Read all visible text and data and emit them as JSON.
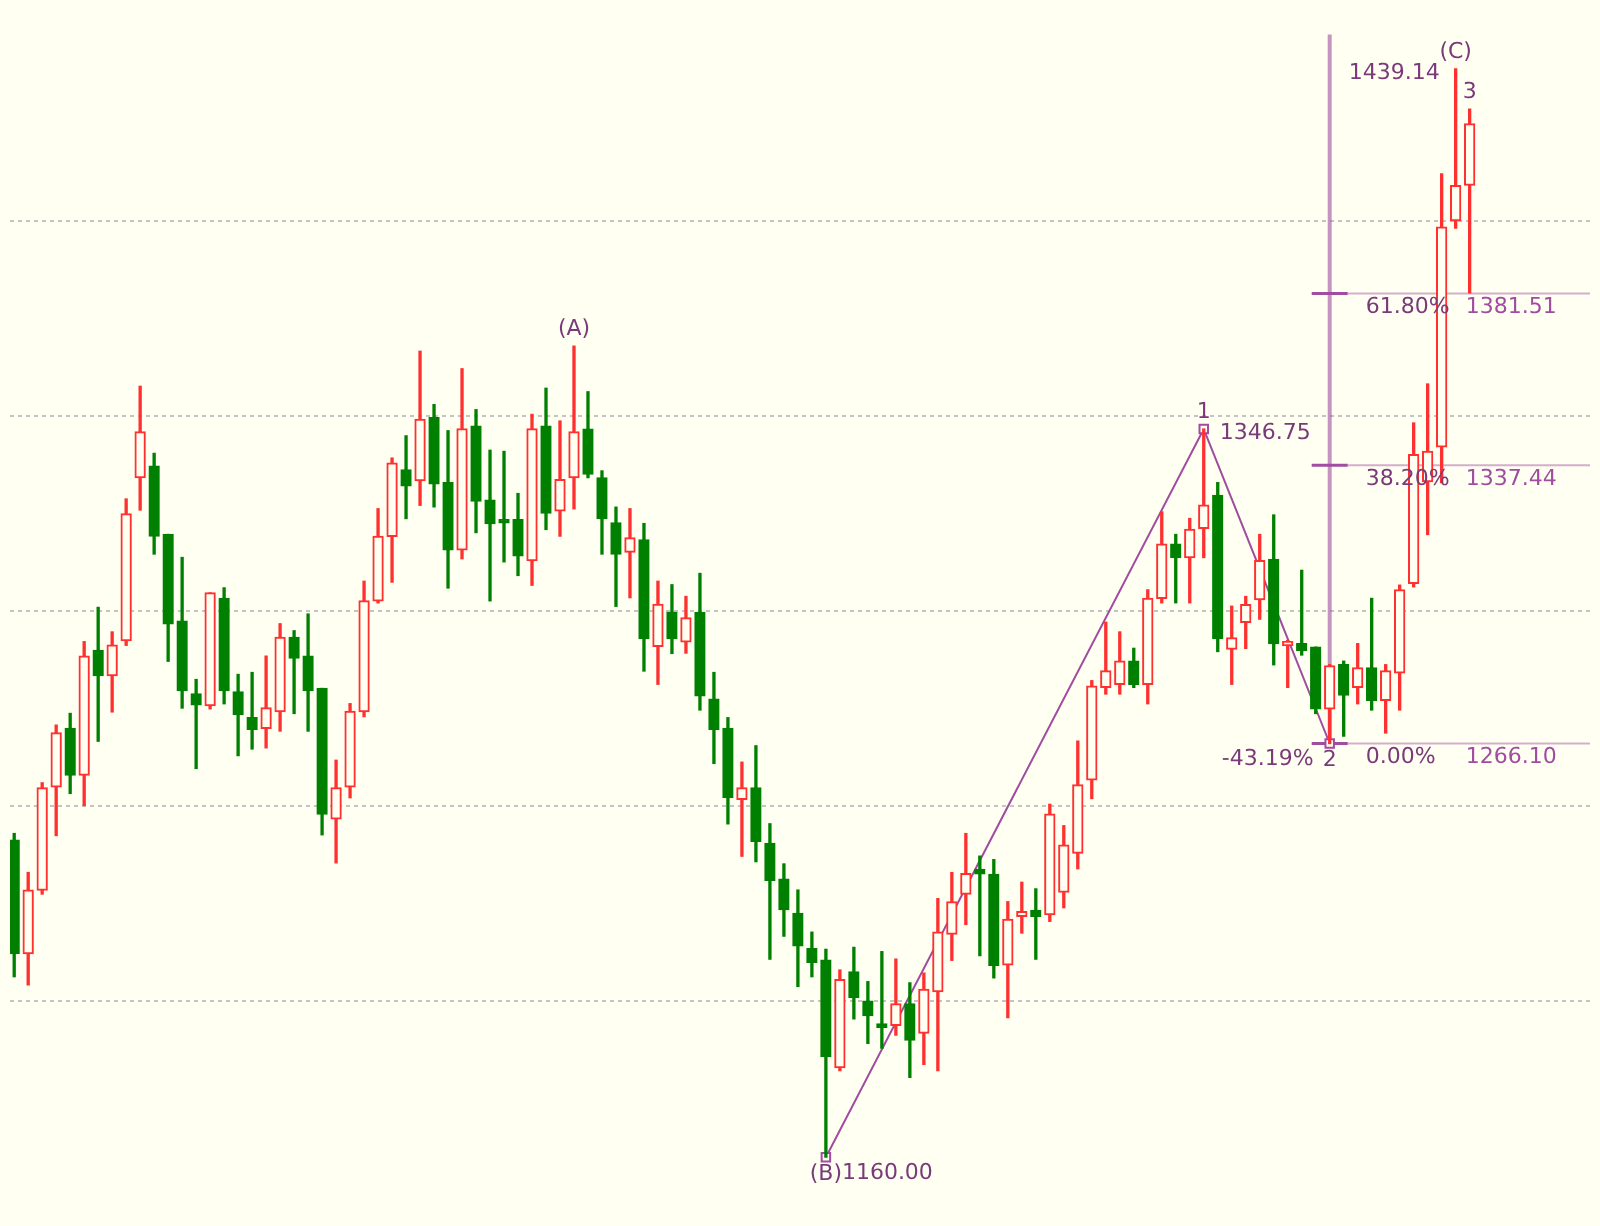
{
  "chart_data": {
    "type": "candlestick",
    "categories": [
      null,
      null,
      null,
      null,
      null,
      null,
      null,
      null,
      null,
      null,
      null,
      null,
      null,
      null,
      null,
      null,
      null,
      null,
      null,
      null,
      null,
      null,
      null,
      null,
      null,
      null,
      null,
      null,
      null,
      null,
      null,
      null,
      null,
      null,
      null,
      null,
      null,
      null,
      null,
      null,
      null,
      null,
      null,
      null,
      null,
      null,
      null,
      null,
      null,
      null,
      null,
      null,
      null,
      null,
      null,
      null,
      null,
      null,
      null,
      null,
      null,
      null,
      null,
      null,
      null,
      null,
      null,
      null,
      null,
      null,
      null,
      null,
      null,
      null,
      null,
      null,
      null,
      null,
      null,
      null,
      null,
      null,
      null,
      null,
      null,
      null,
      null,
      null,
      null,
      null,
      null,
      null,
      null,
      null,
      null,
      null,
      null,
      null,
      null,
      null,
      null,
      null,
      null,
      null,
      null
    ],
    "ohlc": [
      [
        1241.3,
        1243,
        1206.3,
        1212.2
      ],
      [
        1212.2,
        1233,
        1204.2,
        1228.5
      ],
      [
        1228.5,
        1256,
        1227.5,
        1254.7
      ],
      [
        1255,
        1270.8,
        1242.5,
        1268.8
      ],
      [
        1270,
        1273.8,
        1253.3,
        1258
      ],
      [
        1258,
        1292.2,
        1250.2,
        1288.5
      ],
      [
        1290,
        1301,
        1266.7,
        1283.5
      ],
      [
        1283.5,
        1294.7,
        1274.2,
        1291.3
      ],
      [
        1292.5,
        1328.8,
        1291.3,
        1325
      ],
      [
        1334.3,
        1357.7,
        1326,
        1346
      ],
      [
        1337.2,
        1340.5,
        1314.7,
        1319.3
      ],
      [
        1319.7,
        1319.7,
        1287.2,
        1296.8
      ],
      [
        1297.5,
        1313.8,
        1275.2,
        1279.7
      ],
      [
        1278.8,
        1282.5,
        1259.7,
        1276
      ],
      [
        1275.8,
        1304.7,
        1275,
        1304.7
      ],
      [
        1303.3,
        1306,
        1276.3,
        1279.7
      ],
      [
        1279.3,
        1283.8,
        1263,
        1273.5
      ],
      [
        1272.7,
        1284.3,
        1264.7,
        1269.7
      ],
      [
        1270,
        1288.5,
        1265,
        1275.2
      ],
      [
        1274.3,
        1296.8,
        1269.3,
        1293.3
      ],
      [
        1293.3,
        1295,
        1273.8,
        1288
      ],
      [
        1288.5,
        1299.3,
        1269.3,
        1279.7
      ],
      [
        1280.2,
        1280.2,
        1242.7,
        1248
      ],
      [
        1246.8,
        1261.8,
        1235.5,
        1254.7
      ],
      [
        1255,
        1276.3,
        1252.2,
        1274.3
      ],
      [
        1274.3,
        1307.7,
        1273,
        1302.7
      ],
      [
        1302.7,
        1326.3,
        1302.2,
        1319.2
      ],
      [
        1319.2,
        1339.3,
        1307.5,
        1338
      ],
      [
        1336.3,
        1345,
        1323.8,
        1332.2
      ],
      [
        1333.5,
        1366.7,
        1327.2,
        1349.2
      ],
      [
        1349.7,
        1353,
        1326.8,
        1332.7
      ],
      [
        1333,
        1346.3,
        1306,
        1315.8
      ],
      [
        1315.8,
        1362.2,
        1313.5,
        1346.8
      ],
      [
        1347.5,
        1351.7,
        1320.2,
        1328.3
      ],
      [
        1328.5,
        1341.3,
        1302.7,
        1322.5
      ],
      [
        1323.5,
        1341,
        1312.7,
        1322.7
      ],
      [
        1323.5,
        1330.2,
        1309.2,
        1314.2
      ],
      [
        1313,
        1350.5,
        1306.7,
        1346.8
      ],
      [
        1347.5,
        1357.2,
        1321,
        1325.2
      ],
      [
        1325.8,
        1348.8,
        1319.3,
        1333.8
      ],
      [
        1334.3,
        1368,
        1326.3,
        1346
      ],
      [
        1346.7,
        1356.3,
        1334.3,
        1335.2
      ],
      [
        1334.2,
        1336,
        1314.7,
        1323.8
      ],
      [
        1322.7,
        1326.7,
        1301.3,
        1314.7
      ],
      [
        1315.2,
        1326.3,
        1303.5,
        1318.8
      ],
      [
        1318.3,
        1322.5,
        1284.7,
        1293
      ],
      [
        1291,
        1307.7,
        1281.3,
        1301.8
      ],
      [
        1299.7,
        1306.8,
        1289.2,
        1293
      ],
      [
        1292.2,
        1303.8,
        1289.3,
        1298.3
      ],
      [
        1299.7,
        1309.7,
        1274.7,
        1278.3
      ],
      [
        1277.5,
        1284.3,
        1261,
        1269.7
      ],
      [
        1270,
        1272.7,
        1245.5,
        1252.2
      ],
      [
        1251.8,
        1261.3,
        1237.2,
        1254.7
      ],
      [
        1254.7,
        1265.5,
        1235.8,
        1241
      ],
      [
        1240.5,
        1245.5,
        1210.8,
        1231
      ],
      [
        1231.3,
        1235.2,
        1216.7,
        1223.5
      ],
      [
        1222.5,
        1228.5,
        1203.8,
        1214.2
      ],
      [
        1213.5,
        1217.7,
        1206.3,
        1210
      ],
      [
        1210.5,
        1213.3,
        1160,
        1185.8
      ],
      [
        1183,
        1208,
        1182.2,
        1205.5
      ],
      [
        1207.5,
        1213.8,
        1195.5,
        1201
      ],
      [
        1200,
        1205,
        1189.2,
        1196.3
      ],
      [
        1194.2,
        1212.7,
        1188,
        1193.3
      ],
      [
        1193.8,
        1210.8,
        1191.3,
        1199.3
      ],
      [
        1199.3,
        1204.7,
        1180.5,
        1190
      ],
      [
        1191.8,
        1207.2,
        1183.8,
        1203
      ],
      [
        1202.5,
        1226.3,
        1182.2,
        1217.7
      ],
      [
        1217.2,
        1233,
        1210.5,
        1225.5
      ],
      [
        1227.5,
        1243,
        1219.7,
        1232.7
      ],
      [
        1233.8,
        1237.2,
        1211.7,
        1232.7
      ],
      [
        1232.5,
        1236.3,
        1206,
        1209.2
      ],
      [
        1209.3,
        1225.5,
        1195.8,
        1221
      ],
      [
        1221.8,
        1230.5,
        1217.5,
        1223
      ],
      [
        1223.3,
        1228.8,
        1210.8,
        1221.8
      ],
      [
        1222.2,
        1250.5,
        1220.5,
        1248
      ],
      [
        1228,
        1245,
        1224,
        1240
      ],
      [
        1238,
        1266.7,
        1234,
        1255.5
      ],
      [
        1256.8,
        1282.2,
        1252,
        1280.8
      ],
      [
        1280.5,
        1297.2,
        1278.8,
        1284.7
      ],
      [
        1281.3,
        1294.7,
        1278.8,
        1287.2
      ],
      [
        1287.2,
        1290.5,
        1280.5,
        1281.3
      ],
      [
        1281.3,
        1305.5,
        1276.3,
        1303.3
      ],
      [
        1303.3,
        1325.5,
        1302.2,
        1317.2
      ],
      [
        1317.2,
        1319.7,
        1302.2,
        1313.8
      ],
      [
        1313.8,
        1323.8,
        1302.2,
        1321
      ],
      [
        1321.3,
        1346.75,
        1313.8,
        1327.2
      ],
      [
        1329.7,
        1333,
        1289.7,
        1293
      ],
      [
        1290.3,
        1301.3,
        1281.3,
        1293.2
      ],
      [
        1297.2,
        1303.8,
        1290.5,
        1301.7
      ],
      [
        1303,
        1319.7,
        1298,
        1313
      ],
      [
        1313.3,
        1324.7,
        1286.3,
        1291.7
      ],
      [
        1291.3,
        1292.5,
        1280.5,
        1292.2
      ],
      [
        1291.7,
        1310.5,
        1288.8,
        1290
      ],
      [
        1290.8,
        1290.8,
        1273.8,
        1275
      ],
      [
        1275,
        1286.3,
        1266.1,
        1286
      ],
      [
        1286.3,
        1287.2,
        1268,
        1278.5
      ],
      [
        1280.5,
        1291.7,
        1276.3,
        1285.5
      ],
      [
        1285.5,
        1303.3,
        1274.7,
        1277.2
      ],
      [
        1277.2,
        1286.3,
        1268.8,
        1284.7
      ],
      [
        1284.2,
        1306.7,
        1274.7,
        1305.5
      ],
      [
        1307.2,
        1348.3,
        1306.3,
        1340.2
      ],
      [
        1333.3,
        1358.3,
        1319.7,
        1341
      ],
      [
        1342.2,
        1412.2,
        1333,
        1398.5
      ],
      [
        1400.2,
        1439.14,
        1398.3,
        1409.2
      ],
      [
        1409.3,
        1428.8,
        1381.7,
        1425
      ]
    ],
    "colors": [
      "#008000",
      "#ff3030",
      "#ff3030",
      "#ff3030",
      "#008000",
      "#ff3030",
      "#008000",
      "#ff3030",
      "#ff3030",
      "#ff3030",
      "#008000",
      "#008000",
      "#008000",
      "#008000",
      "#ff3030",
      "#008000",
      "#008000",
      "#008000",
      "#ff3030",
      "#ff3030",
      "#008000",
      "#008000",
      "#008000",
      "#ff3030",
      "#ff3030",
      "#ff3030",
      "#ff3030",
      "#ff3030",
      "#008000",
      "#ff3030",
      "#008000",
      "#008000",
      "#ff3030",
      "#008000",
      "#008000",
      "#008000",
      "#008000",
      "#ff3030",
      "#008000",
      "#ff3030",
      "#ff3030",
      "#008000",
      "#008000",
      "#008000",
      "#ff3030",
      "#008000",
      "#ff3030",
      "#008000",
      "#ff3030",
      "#008000",
      "#008000",
      "#008000",
      "#ff3030",
      "#008000",
      "#008000",
      "#008000",
      "#008000",
      "#008000",
      "#008000",
      "#ff3030",
      "#008000",
      "#008000",
      "#008000",
      "#ff3030",
      "#008000",
      "#ff3030",
      "#ff3030",
      "#ff3030",
      "#ff3030",
      "#008000",
      "#008000",
      "#ff3030",
      "#ff3030",
      "#008000",
      "#ff3030",
      "#ff3030",
      "#ff3030",
      "#ff3030",
      "#ff3030",
      "#ff3030",
      "#008000",
      "#ff3030",
      "#ff3030",
      "#008000",
      "#ff3030",
      "#ff3030",
      "#008000",
      "#ff3030",
      "#ff3030",
      "#ff3030",
      "#008000",
      "#ff3030",
      "#008000",
      "#008000",
      "#ff3030",
      "#008000",
      "#ff3030",
      "#008000",
      "#ff3030",
      "#ff3030",
      "#ff3030",
      "#ff3030",
      "#ff3030",
      "#ff3030",
      "#ff3030"
    ],
    "series": [
      {
        "type": "line",
        "color": "#a04ca0",
        "values": [
          null,
          null,
          null,
          null,
          null,
          null,
          null,
          null,
          null,
          null,
          null,
          null,
          null,
          null,
          null,
          null,
          null,
          null,
          null,
          null,
          null,
          null,
          null,
          null,
          null,
          null,
          null,
          null,
          null,
          null,
          null,
          null,
          null,
          null,
          null,
          null,
          null,
          null,
          null,
          null,
          null,
          null,
          null,
          null,
          null,
          null,
          null,
          null,
          null,
          null,
          null,
          null,
          null,
          null,
          null,
          null,
          null,
          null,
          1160,
          null,
          null,
          null,
          null,
          null,
          null,
          null,
          null,
          null,
          null,
          null,
          null,
          null,
          null,
          null,
          null,
          null,
          null,
          null,
          null,
          null,
          null,
          null,
          null,
          null,
          null,
          1346.75,
          null,
          null,
          null,
          null,
          null,
          null,
          null,
          null,
          1266.1,
          null,
          null,
          null,
          null,
          null,
          null,
          null,
          null,
          null,
          null
        ]
      }
    ],
    "marker": "square",
    "yticks": [
      {
        "value": 1200,
        "label": null
      },
      {
        "value": 1250,
        "label": null
      },
      {
        "value": 1300,
        "label": null
      },
      {
        "value": 1350,
        "label": null
      },
      {
        "value": 1400,
        "label": null
      }
    ],
    "grid": "y",
    "ref_lines": [
      {
        "axis": "y",
        "value": 1381.51,
        "label": "1381.51",
        "color": "#a04ca0"
      },
      {
        "axis": "y",
        "value": 1337.44,
        "label": "1337.44",
        "color": "#a04ca0"
      },
      {
        "axis": "y",
        "value": 1266.1,
        "label": "1266.10",
        "color": "#a04ca0"
      }
    ],
    "annotations": [
      {
        "text": "(A)",
        "y": 1368
      },
      {
        "text": "(B)",
        "y": 1160
      },
      "1160.00",
      {
        "text": "(C)",
        "y": 1439.14
      },
      "1439.14",
      {
        "text": "1",
        "y": 1346.75
      },
      "1346.75",
      {
        "text": "2",
        "y": 1266.1
      },
      "-43.19%",
      {
        "text": "0.00%",
        "y": 1266.1
      },
      {
        "text": "61.80%",
        "y": 1381.51
      },
      {
        "text": "38.20%",
        "y": 1337.44
      },
      {
        "text": "3",
        "y": 1428.8
      }
    ]
  }
}
